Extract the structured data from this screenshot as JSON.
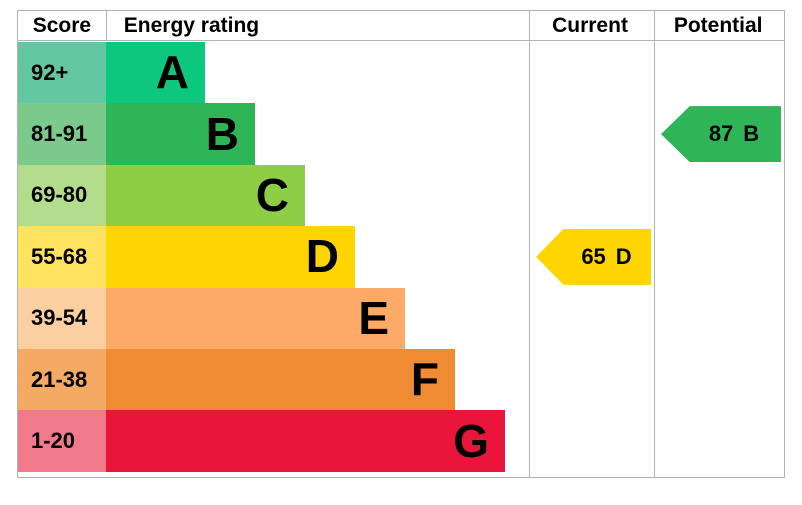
{
  "header": {
    "score": "Score",
    "energy_rating": "Energy rating",
    "current": "Current",
    "potential": "Potential"
  },
  "bands": [
    {
      "range": "92+",
      "letter": "A",
      "bar_color": "#0dc77e",
      "score_color": "#63c7a4"
    },
    {
      "range": "81-91",
      "letter": "B",
      "bar_color": "#2eb558",
      "score_color": "#7cc98c"
    },
    {
      "range": "69-80",
      "letter": "C",
      "bar_color": "#8dce46",
      "score_color": "#b3dd8d"
    },
    {
      "range": "55-68",
      "letter": "D",
      "bar_color": "#ffd500",
      "score_color": "#ffe360"
    },
    {
      "range": "39-54",
      "letter": "E",
      "bar_color": "#fcaa65",
      "score_color": "#fccfa0"
    },
    {
      "range": "21-38",
      "letter": "F",
      "bar_color": "#ef8b33",
      "score_color": "#f4aa63"
    },
    {
      "range": "1-20",
      "letter": "G",
      "bar_color": "#e9153b",
      "score_color": "#f1798c"
    }
  ],
  "current": {
    "value": "65",
    "letter": "D",
    "band_index": 3,
    "color": "#ffd500"
  },
  "potential": {
    "value": "87",
    "letter": "B",
    "band_index": 1,
    "color": "#2eb558"
  },
  "border_color": "#b1b4b6",
  "chart_data": {
    "type": "bar",
    "title": "EPC energy efficiency rating chart",
    "columns": [
      "Score",
      "Energy rating",
      "Current",
      "Potential"
    ],
    "categories": [
      "A",
      "B",
      "C",
      "D",
      "E",
      "F",
      "G"
    ],
    "score_ranges": [
      "92+",
      "81-91",
      "69-80",
      "55-68",
      "39-54",
      "21-38",
      "1-20"
    ],
    "bar_relative_widths": [
      1,
      1.5,
      2,
      2.5,
      3,
      3.5,
      4
    ],
    "series": [
      {
        "name": "Current",
        "value": 65,
        "band": "D"
      },
      {
        "name": "Potential",
        "value": 87,
        "band": "B"
      }
    ],
    "legend_position": "none",
    "grid": false
  }
}
